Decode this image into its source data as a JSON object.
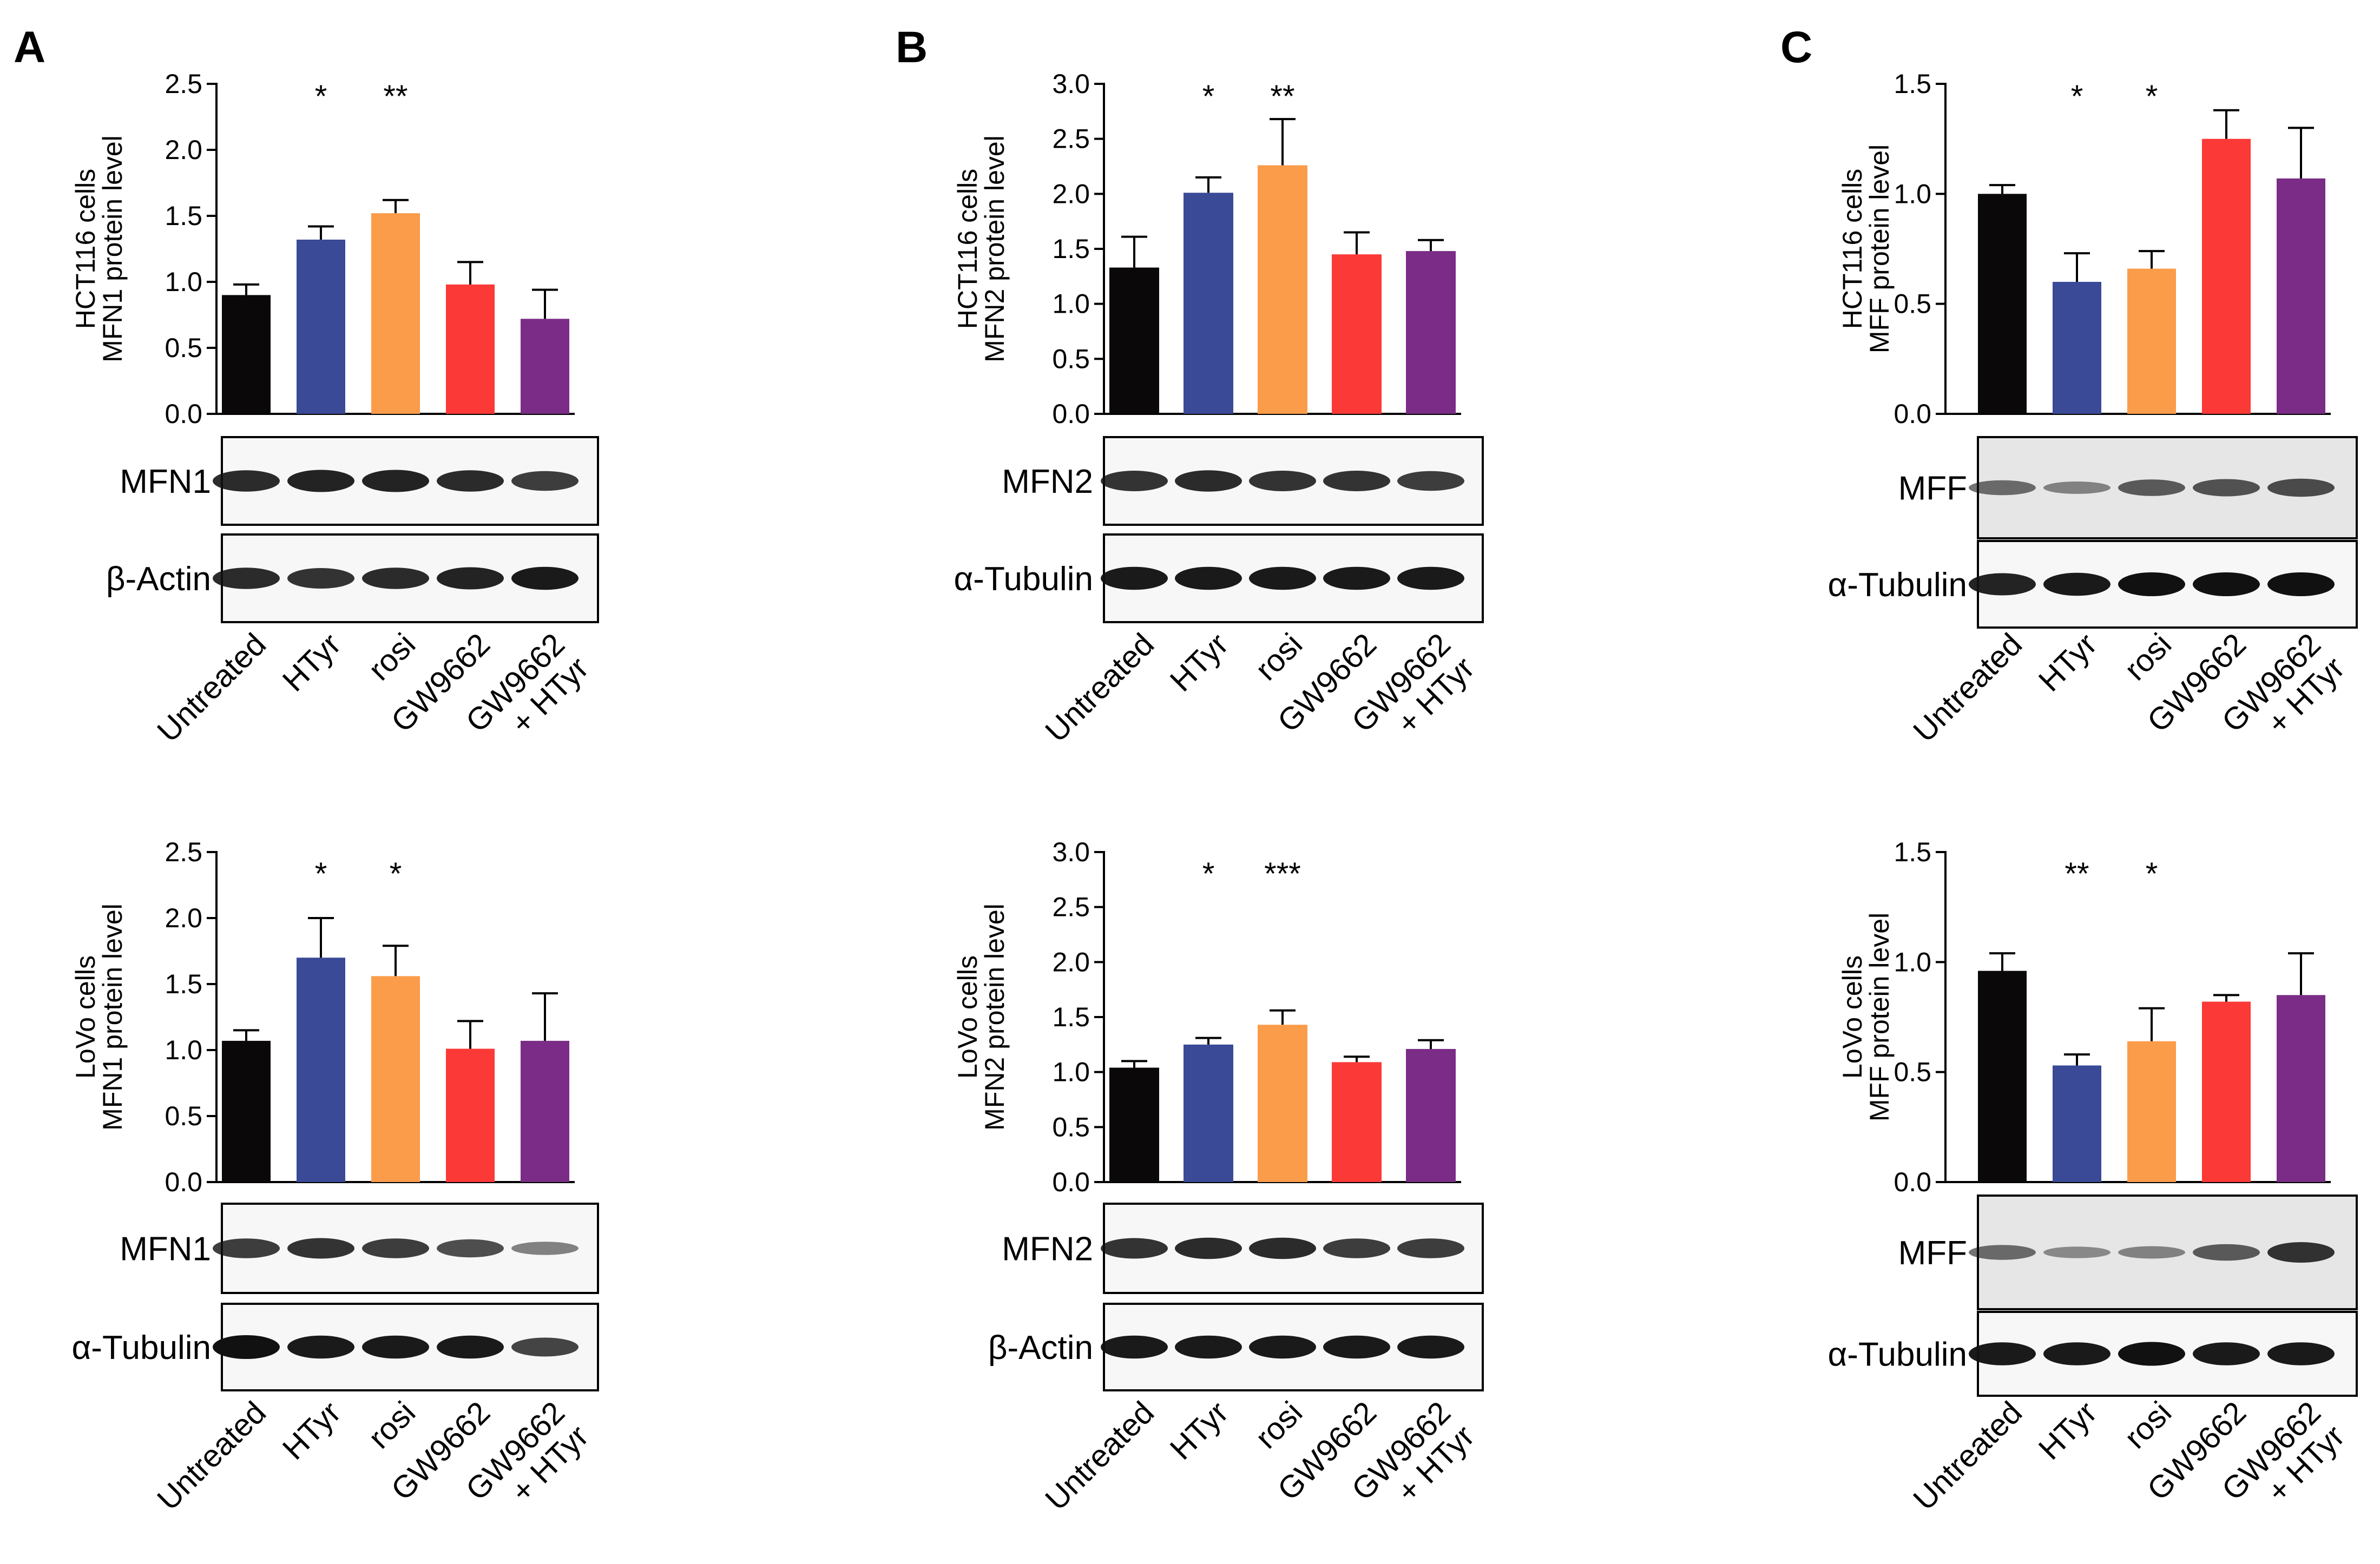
{
  "panel_letters": [
    "A",
    "B",
    "C"
  ],
  "colors": {
    "untreated": "#0a0808",
    "htyr": "#3a4a97",
    "rosi": "#fb9c4b",
    "gw9662": "#fb3937",
    "gw9662_htyr": "#7a2c86",
    "axis": "#000000"
  },
  "chart_data": [
    {
      "type": "bar",
      "panel": "A",
      "row": "top",
      "ylabel_lines": [
        "HCT116 cells",
        "MFN1 protein level"
      ],
      "categories": [
        "Untreated",
        "HTyr",
        "rosi",
        "GW9662",
        "GW9662\n+ HTyr"
      ],
      "values": [
        0.9,
        1.32,
        1.52,
        0.98,
        0.72
      ],
      "errors": [
        0.08,
        0.1,
        0.1,
        0.17,
        0.22
      ],
      "significance": [
        "",
        "*",
        "**",
        "",
        ""
      ],
      "ylim": [
        0,
        2.5
      ],
      "yticks": [
        "0.0",
        "0.5",
        "1.0",
        "1.5",
        "2.0",
        "2.5"
      ],
      "blots": [
        {
          "label": "MFN1",
          "intensity": [
            0.85,
            0.9,
            0.9,
            0.85,
            0.75
          ]
        },
        {
          "label": "β-Actin",
          "intensity": [
            0.85,
            0.8,
            0.85,
            0.9,
            0.95
          ]
        }
      ]
    },
    {
      "type": "bar",
      "panel": "A",
      "row": "bottom",
      "ylabel_lines": [
        "LoVo cells",
        "MFN1 protein level"
      ],
      "categories": [
        "Untreated",
        "HTyr",
        "rosi",
        "GW9662",
        "GW9662\n+ HTyr"
      ],
      "values": [
        1.07,
        1.7,
        1.56,
        1.01,
        1.07
      ],
      "errors": [
        0.08,
        0.3,
        0.23,
        0.21,
        0.36
      ],
      "significance": [
        "",
        "*",
        "*",
        "",
        ""
      ],
      "ylim": [
        0,
        2.5
      ],
      "yticks": [
        "0.0",
        "0.5",
        "1.0",
        "1.5",
        "2.0",
        "2.5"
      ],
      "blots": [
        {
          "label": "MFN1",
          "intensity": [
            0.75,
            0.8,
            0.75,
            0.65,
            0.35
          ]
        },
        {
          "label": "α-Tubulin",
          "intensity": [
            1.0,
            0.95,
            0.95,
            0.95,
            0.7
          ]
        }
      ]
    },
    {
      "type": "bar",
      "panel": "B",
      "row": "top",
      "ylabel_lines": [
        "HCT116 cells",
        "MFN2 protein level"
      ],
      "categories": [
        "Untreated",
        "HTyr",
        "rosi",
        "GW9662",
        "GW9662\n+ HTyr"
      ],
      "values": [
        1.33,
        2.01,
        2.26,
        1.45,
        1.48
      ],
      "errors": [
        0.28,
        0.14,
        0.42,
        0.2,
        0.1
      ],
      "significance": [
        "",
        "*",
        "**",
        "",
        ""
      ],
      "ylim": [
        0,
        3.0
      ],
      "yticks": [
        "0.0",
        "0.5",
        "1.0",
        "1.5",
        "2.0",
        "2.5",
        "3.0"
      ],
      "blots": [
        {
          "label": "MFN2",
          "intensity": [
            0.8,
            0.85,
            0.8,
            0.8,
            0.75
          ]
        },
        {
          "label": "α-Tubulin",
          "intensity": [
            0.95,
            0.95,
            0.95,
            0.95,
            0.95
          ]
        }
      ]
    },
    {
      "type": "bar",
      "panel": "B",
      "row": "bottom",
      "ylabel_lines": [
        "LoVo cells",
        "MFN2 protein level"
      ],
      "categories": [
        "Untreated",
        "HTyr",
        "rosi",
        "GW9662",
        "GW9662\n+ HTyr"
      ],
      "values": [
        1.04,
        1.25,
        1.43,
        1.09,
        1.21
      ],
      "errors": [
        0.06,
        0.06,
        0.13,
        0.05,
        0.08
      ],
      "significance": [
        "",
        "*",
        "***",
        "",
        ""
      ],
      "ylim": [
        0,
        3.0
      ],
      "yticks": [
        "0.0",
        "0.5",
        "1.0",
        "1.5",
        "2.0",
        "2.5",
        "3.0"
      ],
      "blots": [
        {
          "label": "MFN2",
          "intensity": [
            0.8,
            0.85,
            0.85,
            0.75,
            0.75
          ]
        },
        {
          "label": "β-Actin",
          "intensity": [
            0.95,
            0.95,
            0.95,
            0.95,
            0.95
          ]
        }
      ]
    },
    {
      "type": "bar",
      "panel": "C",
      "row": "top",
      "ylabel_lines": [
        "HCT116 cells",
        "MFF protein level"
      ],
      "categories": [
        "Untreated",
        "HTyr",
        "rosi",
        "GW9662",
        "GW9662\n+ HTyr"
      ],
      "values": [
        1.0,
        0.6,
        0.66,
        1.25,
        1.07
      ],
      "errors": [
        0.04,
        0.13,
        0.08,
        0.13,
        0.23
      ],
      "significance": [
        "",
        "*",
        "*",
        "",
        ""
      ],
      "ylim": [
        0,
        1.5
      ],
      "yticks": [
        "0.0",
        "0.5",
        "1.0",
        "1.5"
      ],
      "blots": [
        {
          "label": "MFF",
          "intensity": [
            0.45,
            0.3,
            0.55,
            0.6,
            0.65
          ]
        },
        {
          "label": "α-Tubulin",
          "intensity": [
            0.9,
            0.95,
            1.0,
            1.0,
            1.0
          ]
        }
      ]
    },
    {
      "type": "bar",
      "panel": "C",
      "row": "bottom",
      "ylabel_lines": [
        "LoVo cells",
        "MFF protein level"
      ],
      "categories": [
        "Untreated",
        "HTyr",
        "rosi",
        "GW9662",
        "GW9662\n+ HTyr"
      ],
      "values": [
        0.96,
        0.53,
        0.64,
        0.82,
        0.85
      ],
      "errors": [
        0.08,
        0.05,
        0.15,
        0.03,
        0.19
      ],
      "significance": [
        "",
        "**",
        "*",
        "",
        ""
      ],
      "ylim": [
        0,
        1.5
      ],
      "yticks": [
        "0.0",
        "0.5",
        "1.0",
        "1.5"
      ],
      "blots": [
        {
          "label": "MFF",
          "intensity": [
            0.45,
            0.25,
            0.3,
            0.55,
            0.8
          ]
        },
        {
          "label": "α-Tubulin",
          "intensity": [
            0.95,
            0.95,
            1.0,
            0.95,
            0.95
          ]
        }
      ]
    }
  ]
}
